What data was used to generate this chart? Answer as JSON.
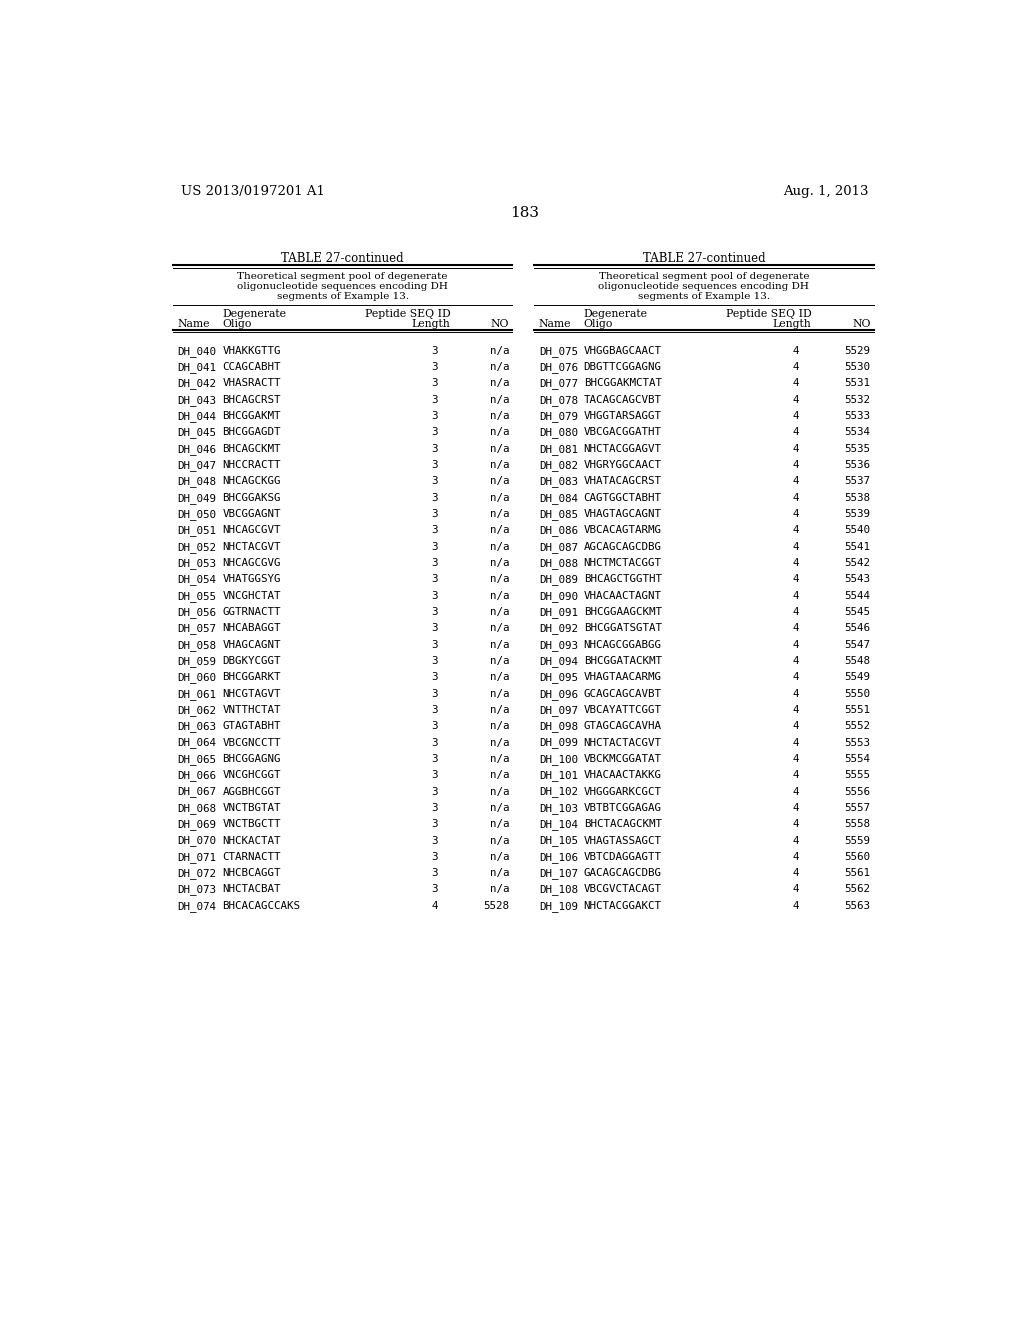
{
  "page_number": "183",
  "patent_left": "US 2013/0197201 A1",
  "patent_right": "Aug. 1, 2013",
  "table_title": "TABLE 27-continued",
  "table_subtitle_l1": "Theoretical segment pool of degenerate",
  "table_subtitle_l2": "oligonucleotide sequences encoding DH",
  "table_subtitle_l3": "segments of Example 13.",
  "left_data": [
    [
      "DH_040",
      "VHAKKGTTG",
      "3",
      "n/a"
    ],
    [
      "DH_041",
      "CCAGCABHT",
      "3",
      "n/a"
    ],
    [
      "DH_042",
      "VHASRACTT",
      "3",
      "n/a"
    ],
    [
      "DH_043",
      "BHCAGCRST",
      "3",
      "n/a"
    ],
    [
      "DH_044",
      "BHCGGAKMT",
      "3",
      "n/a"
    ],
    [
      "DH_045",
      "BHCGGAGDT",
      "3",
      "n/a"
    ],
    [
      "DH_046",
      "BHCAGCKMT",
      "3",
      "n/a"
    ],
    [
      "DH_047",
      "NHCCRACTT",
      "3",
      "n/a"
    ],
    [
      "DH_048",
      "NHCAGCKGG",
      "3",
      "n/a"
    ],
    [
      "DH_049",
      "BHCGGAKSG",
      "3",
      "n/a"
    ],
    [
      "DH_050",
      "VBCGGAGNT",
      "3",
      "n/a"
    ],
    [
      "DH_051",
      "NHCAGCGVT",
      "3",
      "n/a"
    ],
    [
      "DH_052",
      "NHCTACGVT",
      "3",
      "n/a"
    ],
    [
      "DH_053",
      "NHCAGCGVG",
      "3",
      "n/a"
    ],
    [
      "DH_054",
      "VHATGGSYG",
      "3",
      "n/a"
    ],
    [
      "DH_055",
      "VNCGHCTAT",
      "3",
      "n/a"
    ],
    [
      "DH_056",
      "GGTRNACTT",
      "3",
      "n/a"
    ],
    [
      "DH_057",
      "NHCABAGGT",
      "3",
      "n/a"
    ],
    [
      "DH_058",
      "VHAGCAGNT",
      "3",
      "n/a"
    ],
    [
      "DH_059",
      "DBGKYCGGT",
      "3",
      "n/a"
    ],
    [
      "DH_060",
      "BHCGGARKT",
      "3",
      "n/a"
    ],
    [
      "DH_061",
      "NHCGTAGVT",
      "3",
      "n/a"
    ],
    [
      "DH_062",
      "VNTTHCTAT",
      "3",
      "n/a"
    ],
    [
      "DH_063",
      "GTAGTABHT",
      "3",
      "n/a"
    ],
    [
      "DH_064",
      "VBCGNCCTT",
      "3",
      "n/a"
    ],
    [
      "DH_065",
      "BHCGGAGNG",
      "3",
      "n/a"
    ],
    [
      "DH_066",
      "VNCGHCGGT",
      "3",
      "n/a"
    ],
    [
      "DH_067",
      "AGGBHCGGT",
      "3",
      "n/a"
    ],
    [
      "DH_068",
      "VNCTBGTAT",
      "3",
      "n/a"
    ],
    [
      "DH_069",
      "VNCTBGCTT",
      "3",
      "n/a"
    ],
    [
      "DH_070",
      "NHCKACTAT",
      "3",
      "n/a"
    ],
    [
      "DH_071",
      "CTARNACTT",
      "3",
      "n/a"
    ],
    [
      "DH_072",
      "NHCBCAGGT",
      "3",
      "n/a"
    ],
    [
      "DH_073",
      "NHCTACBAT",
      "3",
      "n/a"
    ],
    [
      "DH_074",
      "BHCACAGCCAKS",
      "4",
      "5528"
    ]
  ],
  "right_data": [
    [
      "DH_075",
      "VHGGBAGCAACT",
      "4",
      "5529"
    ],
    [
      "DH_076",
      "DBGTTCGGAGNG",
      "4",
      "5530"
    ],
    [
      "DH_077",
      "BHCGGAKMCTAT",
      "4",
      "5531"
    ],
    [
      "DH_078",
      "TACAGCAGCVBT",
      "4",
      "5532"
    ],
    [
      "DH_079",
      "VHGGTARSAGGT",
      "4",
      "5533"
    ],
    [
      "DH_080",
      "VBCGACGGATHT",
      "4",
      "5534"
    ],
    [
      "DH_081",
      "NHCTACGGAGVT",
      "4",
      "5535"
    ],
    [
      "DH_082",
      "VHGRYGGCAACT",
      "4",
      "5536"
    ],
    [
      "DH_083",
      "VHATACAGCRST",
      "4",
      "5537"
    ],
    [
      "DH_084",
      "CAGTGGCTABHT",
      "4",
      "5538"
    ],
    [
      "DH_085",
      "VHAGTAGCAGNT",
      "4",
      "5539"
    ],
    [
      "DH_086",
      "VBCACAGTARMG",
      "4",
      "5540"
    ],
    [
      "DH_087",
      "AGCAGCAGCDBG",
      "4",
      "5541"
    ],
    [
      "DH_088",
      "NHCTMCTACGGT",
      "4",
      "5542"
    ],
    [
      "DH_089",
      "BHCAGCTGGTHT",
      "4",
      "5543"
    ],
    [
      "DH_090",
      "VHACAACTAGNT",
      "4",
      "5544"
    ],
    [
      "DH_091",
      "BHCGGAAGCKMT",
      "4",
      "5545"
    ],
    [
      "DH_092",
      "BHCGGATSGTAT",
      "4",
      "5546"
    ],
    [
      "DH_093",
      "NHCAGCGGABGG",
      "4",
      "5547"
    ],
    [
      "DH_094",
      "BHCGGATACKMT",
      "4",
      "5548"
    ],
    [
      "DH_095",
      "VHAGTAACARMG",
      "4",
      "5549"
    ],
    [
      "DH_096",
      "GCAGCAGCAVBT",
      "4",
      "5550"
    ],
    [
      "DH_097",
      "VBCAYATTCGGT",
      "4",
      "5551"
    ],
    [
      "DH_098",
      "GTAGCAGCAVHA",
      "4",
      "5552"
    ],
    [
      "DH_099",
      "NHCTACTACGVT",
      "4",
      "5553"
    ],
    [
      "DH_100",
      "VBCKMCGGATAT",
      "4",
      "5554"
    ],
    [
      "DH_101",
      "VHACAACTAKKG",
      "4",
      "5555"
    ],
    [
      "DH_102",
      "VHGGGARKCGCT",
      "4",
      "5556"
    ],
    [
      "DH_103",
      "VBTBTCGGAGAG",
      "4",
      "5557"
    ],
    [
      "DH_104",
      "BHCTACAGCKMT",
      "4",
      "5558"
    ],
    [
      "DH_105",
      "VHAGTASSAGCT",
      "4",
      "5559"
    ],
    [
      "DH_106",
      "VBTCDAGGAGTT",
      "4",
      "5560"
    ],
    [
      "DH_107",
      "GACAGCAGCDBG",
      "4",
      "5561"
    ],
    [
      "DH_108",
      "VBCGVCTACAGT",
      "4",
      "5562"
    ],
    [
      "DH_109",
      "NHCTACGGAKCT",
      "4",
      "5563"
    ]
  ],
  "bg_color": "#ffffff",
  "text_color": "#000000",
  "font_size": 7.8,
  "mono_font": "DejaVu Sans Mono",
  "serif_font": "DejaVu Serif"
}
